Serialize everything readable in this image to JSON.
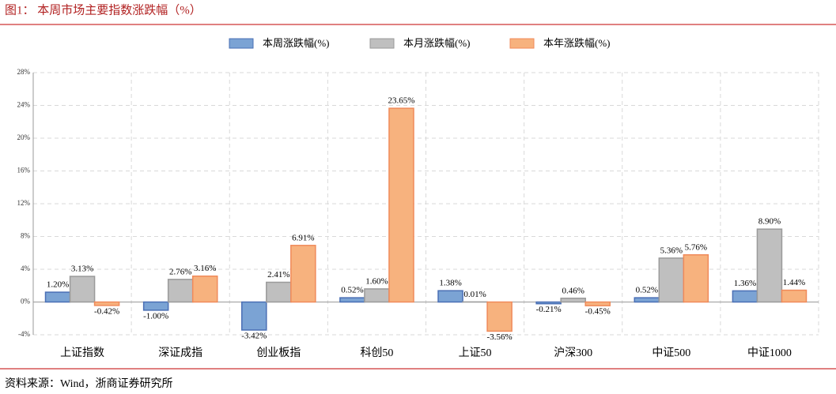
{
  "chart_data": {
    "type": "bar",
    "title": "图1：  本周市场主要指数涨跌幅（%）",
    "source": "资料来源：Wind，浙商证券研究所",
    "categories": [
      "上证指数",
      "深证成指",
      "创业板指",
      "科创50",
      "上证50",
      "沪深300",
      "中证500",
      "中证1000"
    ],
    "series": [
      {
        "name": "本周涨跌幅(%)",
        "color": "#7ba3d4",
        "values": [
          1.2,
          -1.0,
          -3.42,
          0.52,
          1.38,
          -0.21,
          0.52,
          1.36
        ],
        "value_labels": [
          "1.20%",
          "-1.00%",
          "-3.42%",
          "0.52%",
          "1.38%",
          "-0.21%",
          "0.52%",
          "1.36%"
        ]
      },
      {
        "name": "本月涨跌幅(%)",
        "color": "#bfbfbf",
        "values": [
          3.13,
          2.76,
          2.41,
          1.6,
          0.01,
          0.46,
          5.36,
          8.9
        ],
        "value_labels": [
          "3.13%",
          "2.76%",
          "2.41%",
          "1.60%",
          "0.01%",
          "0.46%",
          "5.36%",
          "8.90%"
        ]
      },
      {
        "name": "本年涨跌幅(%)",
        "color": "#f7b27e",
        "values": [
          -0.42,
          3.16,
          6.91,
          23.65,
          -3.56,
          -0.45,
          5.76,
          1.44
        ],
        "value_labels": [
          "-0.42%",
          "3.16%",
          "6.91%",
          "23.65%",
          "-3.56%",
          "-0.45%",
          "5.76%",
          "1.44%"
        ]
      }
    ],
    "ylim": [
      -4,
      28
    ],
    "yticks": [
      {
        "value": -4,
        "label": "-4%"
      },
      {
        "value": 0,
        "label": "0%"
      },
      {
        "value": 4,
        "label": "4%"
      },
      {
        "value": 8,
        "label": "8%"
      },
      {
        "value": 12,
        "label": "12%"
      },
      {
        "value": 16,
        "label": "16%"
      },
      {
        "value": 20,
        "label": "20%"
      },
      {
        "value": 24,
        "label": "24%"
      },
      {
        "value": 28,
        "label": "28%"
      }
    ],
    "grid": true
  }
}
